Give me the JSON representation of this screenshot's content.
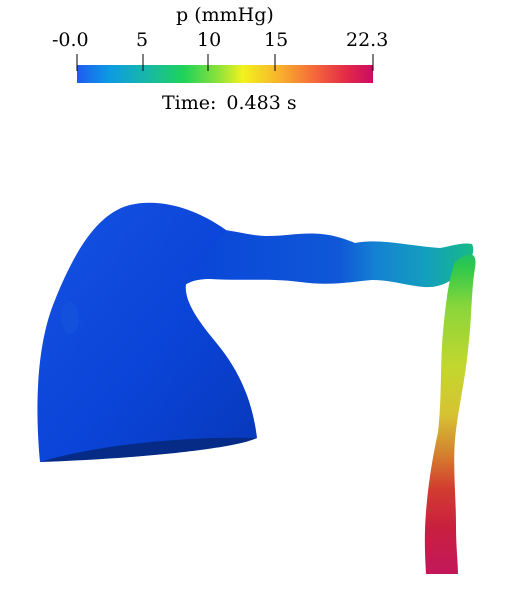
{
  "colorbar": {
    "title": "p (mmHg)",
    "ticks": [
      "-0.0",
      "5",
      "10",
      "15",
      "22.3"
    ],
    "min": -0.0,
    "max": 22.3,
    "colors": [
      "#1e5bf0",
      "#0c9be2",
      "#19b8a6",
      "#1ed25a",
      "#8fe23a",
      "#f2f21e",
      "#f8b42c",
      "#f56a3a",
      "#e32a48",
      "#cc0b63"
    ]
  },
  "time": {
    "label": "Time:",
    "value": "0.483 s"
  },
  "model": {
    "sac_color": "#0a44d8",
    "sac_shadow": "#052b87",
    "pressure_colors": [
      "#0f56d0",
      "#1790d6",
      "#17b59f",
      "#6fd33d",
      "#c7e82e",
      "#d3c531",
      "#d46a2f",
      "#c81e45",
      "#c2185b"
    ]
  }
}
